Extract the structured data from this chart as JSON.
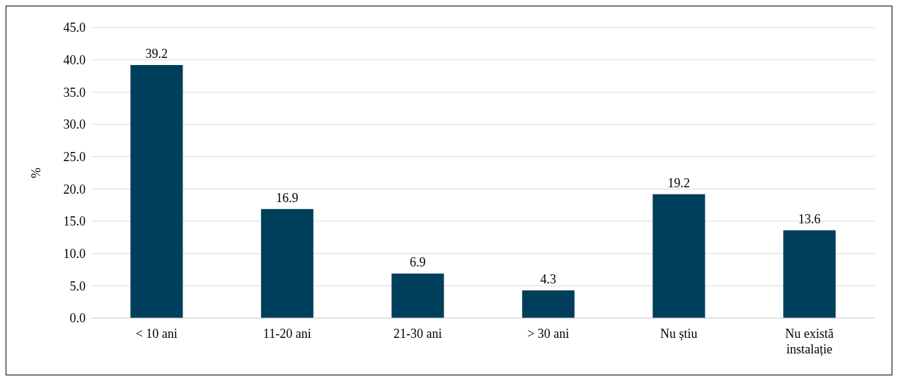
{
  "chart_data": {
    "type": "bar",
    "ylabel": "%",
    "categories": [
      "< 10 ani",
      "11-20 ani",
      "21-30 ani",
      "> 30 ani",
      "Nu știu",
      "Nu există instalație"
    ],
    "values": [
      39.2,
      16.9,
      6.9,
      4.3,
      19.2,
      13.6
    ],
    "color": "#003f5c",
    "ylim": [
      0,
      45
    ],
    "yticks": [
      {
        "value": 0,
        "label": "0.0"
      },
      {
        "value": 5,
        "label": "5.0"
      },
      {
        "value": 10,
        "label": "10.0"
      },
      {
        "value": 15,
        "label": "15.0"
      },
      {
        "value": 20,
        "label": "20.0"
      },
      {
        "value": 25,
        "label": "25.0"
      },
      {
        "value": 30,
        "label": "30.0"
      },
      {
        "value": 35,
        "label": "35.0"
      },
      {
        "value": 40,
        "label": "40.0"
      },
      {
        "value": 45,
        "label": "45.0"
      }
    ],
    "grid": "y",
    "data_labels": true,
    "legend": false
  }
}
